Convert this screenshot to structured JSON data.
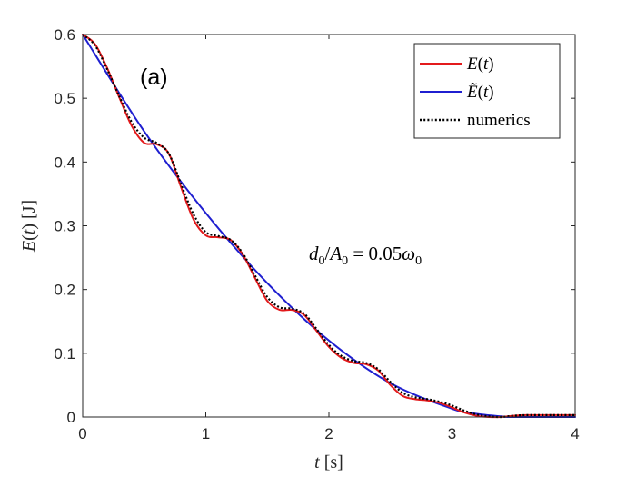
{
  "chart_data": {
    "type": "line",
    "panel_label": "(a)",
    "annotation": "d0/A0 = 0.05ω0",
    "xlabel": "t [s]",
    "ylabel": "E(t) [J]",
    "xlim": [
      0,
      4
    ],
    "ylim": [
      0,
      0.6
    ],
    "xticks": [
      0,
      1,
      2,
      3,
      4
    ],
    "yticks": [
      0,
      0.1,
      0.2,
      0.3,
      0.4,
      0.5,
      0.6
    ],
    "grid": false,
    "legend_position": "top-right",
    "series": [
      {
        "name": "E(t)",
        "color": "#e31a1c",
        "style": "solid",
        "x": [
          0,
          0.1,
          0.2,
          0.3,
          0.4,
          0.5,
          0.6,
          0.7,
          0.8,
          0.9,
          1.0,
          1.1,
          1.2,
          1.3,
          1.4,
          1.5,
          1.6,
          1.7,
          1.8,
          1.9,
          2.0,
          2.1,
          2.2,
          2.3,
          2.4,
          2.5,
          2.6,
          2.7,
          2.8,
          2.9,
          3.0,
          3.1,
          3.2,
          3.3,
          3.4,
          3.5,
          3.6,
          3.7,
          3.8,
          3.9,
          4.0
        ],
        "y": [
          0.6,
          0.585,
          0.547,
          0.5,
          0.456,
          0.43,
          0.428,
          0.413,
          0.36,
          0.31,
          0.285,
          0.282,
          0.278,
          0.255,
          0.218,
          0.182,
          0.168,
          0.168,
          0.16,
          0.135,
          0.11,
          0.093,
          0.085,
          0.083,
          0.073,
          0.05,
          0.033,
          0.028,
          0.026,
          0.022,
          0.015,
          0.007,
          0.002,
          0.0,
          0.0,
          0.002,
          0.003,
          0.003,
          0.003,
          0.003,
          0.003
        ]
      },
      {
        "name": "Ẽ(t)",
        "color": "#1f1fd0",
        "style": "solid",
        "x": [
          0,
          0.5,
          1.0,
          1.5,
          2.0,
          2.5,
          3.0,
          3.2,
          3.4,
          3.45,
          3.6,
          4.0
        ],
        "y": [
          0.6,
          0.448,
          0.32,
          0.21,
          0.12,
          0.053,
          0.013,
          0.005,
          0.001,
          0.0,
          0.0,
          0.0
        ]
      },
      {
        "name": "numerics",
        "color": "#000000",
        "style": "dotted",
        "x": [
          0,
          0.1,
          0.2,
          0.3,
          0.4,
          0.5,
          0.6,
          0.7,
          0.8,
          0.9,
          1.0,
          1.1,
          1.2,
          1.3,
          1.4,
          1.5,
          1.6,
          1.7,
          1.8,
          1.9,
          2.0,
          2.1,
          2.2,
          2.3,
          2.4,
          2.5,
          2.6,
          2.7,
          2.8,
          2.9,
          3.0,
          3.1,
          3.2,
          3.3,
          3.4,
          3.5,
          3.6,
          3.7,
          3.8,
          3.9,
          4.0
        ],
        "y": [
          0.6,
          0.583,
          0.545,
          0.502,
          0.462,
          0.438,
          0.43,
          0.413,
          0.365,
          0.318,
          0.29,
          0.284,
          0.278,
          0.257,
          0.222,
          0.188,
          0.172,
          0.17,
          0.162,
          0.138,
          0.113,
          0.096,
          0.088,
          0.085,
          0.075,
          0.055,
          0.038,
          0.031,
          0.028,
          0.024,
          0.018,
          0.01,
          0.004,
          0.001,
          0.0,
          0.002,
          0.003,
          0.003,
          0.003,
          0.003,
          0.003
        ]
      }
    ]
  }
}
